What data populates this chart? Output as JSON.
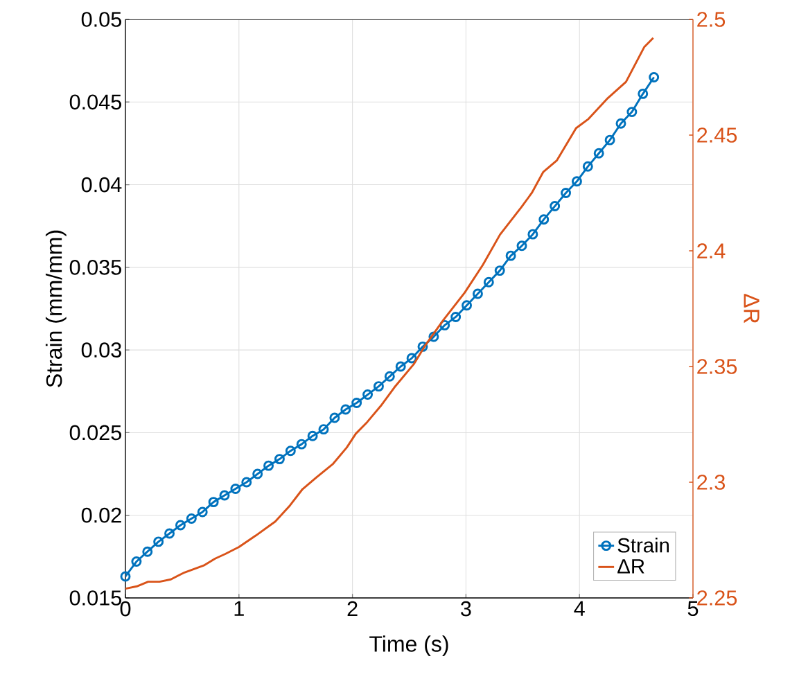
{
  "chart_data": {
    "type": "line",
    "xlabel": "Time (s)",
    "ylabel": "Strain (mm/mm)",
    "y2label": "ΔR",
    "xlim": [
      0,
      5
    ],
    "xticks": [
      0,
      1,
      2,
      3,
      4,
      5
    ],
    "ylim": [
      0.015,
      0.05
    ],
    "yticks": [
      0.015,
      0.02,
      0.025,
      0.03,
      0.035,
      0.04,
      0.045,
      0.05
    ],
    "y2lim": [
      2.25,
      2.5
    ],
    "y2ticks": [
      2.25,
      2.3,
      2.35,
      2.4,
      2.45,
      2.5
    ],
    "grid": true,
    "legend": "bottom right",
    "series": [
      {
        "name": "Strain",
        "color": "#0072bd",
        "marker": "circle",
        "x": [
          0,
          0.097,
          0.194,
          0.291,
          0.388,
          0.485,
          0.582,
          0.679,
          0.776,
          0.873,
          0.97,
          1.067,
          1.164,
          1.261,
          1.358,
          1.455,
          1.552,
          1.649,
          1.746,
          1.843,
          1.94,
          2.037,
          2.134,
          2.231,
          2.328,
          2.425,
          2.522,
          2.619,
          2.716,
          2.813,
          2.91,
          3.007,
          3.104,
          3.201,
          3.298,
          3.395,
          3.492,
          3.589,
          3.686,
          3.783,
          3.88,
          3.977,
          4.074,
          4.171,
          4.268,
          4.365,
          4.462,
          4.559,
          4.656
        ],
        "values": [
          0.0163,
          0.0172,
          0.0178,
          0.0184,
          0.0189,
          0.0194,
          0.0198,
          0.0202,
          0.0208,
          0.0212,
          0.0216,
          0.022,
          0.0225,
          0.023,
          0.0234,
          0.0239,
          0.0243,
          0.0248,
          0.0252,
          0.0259,
          0.0264,
          0.0268,
          0.0273,
          0.0278,
          0.0284,
          0.029,
          0.0295,
          0.0302,
          0.0308,
          0.0315,
          0.032,
          0.0327,
          0.0334,
          0.0341,
          0.0348,
          0.0357,
          0.0363,
          0.037,
          0.0379,
          0.0387,
          0.0395,
          0.0402,
          0.0411,
          0.0419,
          0.0427,
          0.0437,
          0.0444,
          0.0455,
          0.0465
        ]
      },
      {
        "name": "ΔR",
        "color": "#d95319",
        "axis": "y2",
        "marker": "none",
        "x": [
          0,
          0.1,
          0.2,
          0.3,
          0.4,
          0.52,
          0.69,
          0.79,
          0.88,
          1.0,
          1.15,
          1.32,
          1.45,
          1.56,
          1.68,
          1.83,
          1.95,
          2.03,
          2.13,
          2.25,
          2.37,
          2.54,
          2.64,
          2.8,
          2.99,
          3.15,
          3.3,
          3.49,
          3.58,
          3.68,
          3.8,
          3.97,
          4.08,
          4.25,
          4.41,
          4.57,
          4.65
        ],
        "values": [
          2.254,
          2.255,
          2.257,
          2.257,
          2.258,
          2.261,
          2.264,
          2.267,
          2.269,
          2.272,
          2.277,
          2.283,
          2.29,
          2.297,
          2.302,
          2.308,
          2.315,
          2.321,
          2.326,
          2.333,
          2.341,
          2.351,
          2.359,
          2.37,
          2.382,
          2.394,
          2.407,
          2.419,
          2.425,
          2.434,
          2.439,
          2.453,
          2.457,
          2.466,
          2.473,
          2.488,
          2.492
        ]
      }
    ]
  }
}
